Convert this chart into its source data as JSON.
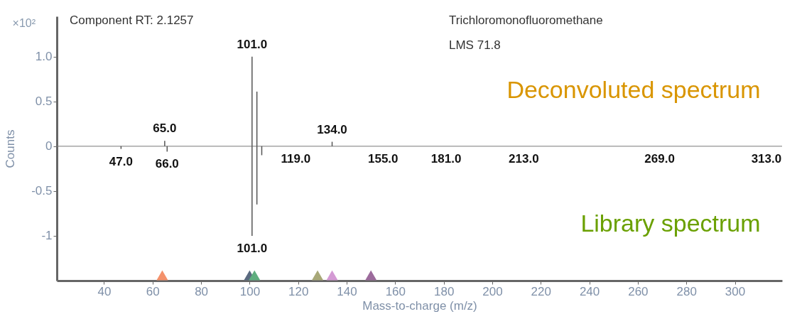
{
  "chart_data": {
    "type": "bar",
    "xlabel": "Mass-to-charge (m/z)",
    "ylabel": "Counts",
    "xlim": [
      22,
      318
    ],
    "xticks": [
      40,
      60,
      80,
      100,
      120,
      140,
      160,
      180,
      200,
      220,
      240,
      260,
      280,
      300
    ],
    "ylim": [
      -1.5,
      1.45
    ],
    "yticks": [
      {
        "value": 1,
        "label": "1.0"
      },
      {
        "value": 0.5,
        "label": "0.5"
      },
      0,
      {
        "value": -0.5,
        "label": "-0.5"
      },
      -1
    ],
    "grid": false,
    "ref_lines": [
      {
        "axis": "y",
        "value": 0,
        "color": "#777777"
      }
    ],
    "series": [
      {
        "name": "Deconvoluted spectrum",
        "color": "#555555",
        "x": [
          65,
          101,
          103,
          134
        ],
        "values": [
          0.06,
          1.0,
          0.61,
          0.05
        ]
      },
      {
        "name": "Library spectrum",
        "color": "#555555",
        "x": [
          47,
          66,
          101,
          103,
          105
        ],
        "values": [
          -0.03,
          -0.06,
          -1.0,
          -0.65,
          -0.1
        ]
      },
      {
        "type": "scatter",
        "marker": "triangle",
        "x": [
          64,
          100,
          102,
          128,
          134,
          150
        ],
        "values": [
          -1.44,
          -1.44,
          -1.44,
          -1.44,
          -1.44,
          -1.44
        ],
        "colors": [
          "#f4916b",
          "#5a6a80",
          "#5fae7f",
          "#a8a878",
          "#d49ad4",
          "#9c6b9c"
        ]
      }
    ],
    "annotations": [
      "×10²",
      "Component RT: 2.1257",
      "Trichloromonofluoromethane",
      "LMS 71.8",
      {
        "text": "101.0",
        "x": 101,
        "y": 1.0
      },
      {
        "text": "65.0",
        "x": 65,
        "y": 0.06
      },
      {
        "text": "134.0",
        "x": 134,
        "y": 0.05
      },
      {
        "text": "47.0",
        "x": 47,
        "y": -0.03
      },
      {
        "text": "66.0",
        "x": 66,
        "y": -0.06
      },
      {
        "text": "119.0",
        "x": 119,
        "y": 0
      },
      {
        "text": "155.0",
        "x": 155,
        "y": 0
      },
      {
        "text": "181.0",
        "x": 181,
        "y": 0
      },
      {
        "text": "213.0",
        "x": 213,
        "y": 0
      },
      {
        "text": "269.0",
        "x": 269,
        "y": 0
      },
      {
        "text": "313.0",
        "x": 313,
        "y": 0
      },
      {
        "text": "101.0",
        "x": 101,
        "y": -1.0
      }
    ]
  }
}
